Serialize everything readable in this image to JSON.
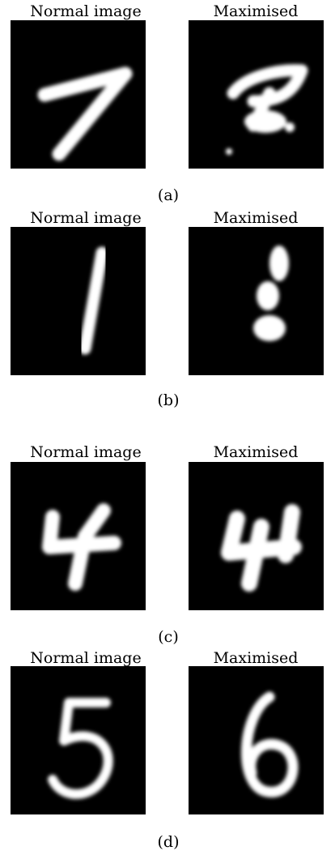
{
  "panels": [
    {
      "left_title": "Normal image",
      "right_title": "Maximised",
      "caption": "(a)"
    },
    {
      "left_title": "Normal image",
      "right_title": "Maximised",
      "caption": "(b)"
    },
    {
      "left_title": "Normal image",
      "right_title": "Maximised",
      "caption": "(c)"
    },
    {
      "left_title": "Normal image",
      "right_title": "Maximised",
      "caption": "(d)"
    }
  ]
}
